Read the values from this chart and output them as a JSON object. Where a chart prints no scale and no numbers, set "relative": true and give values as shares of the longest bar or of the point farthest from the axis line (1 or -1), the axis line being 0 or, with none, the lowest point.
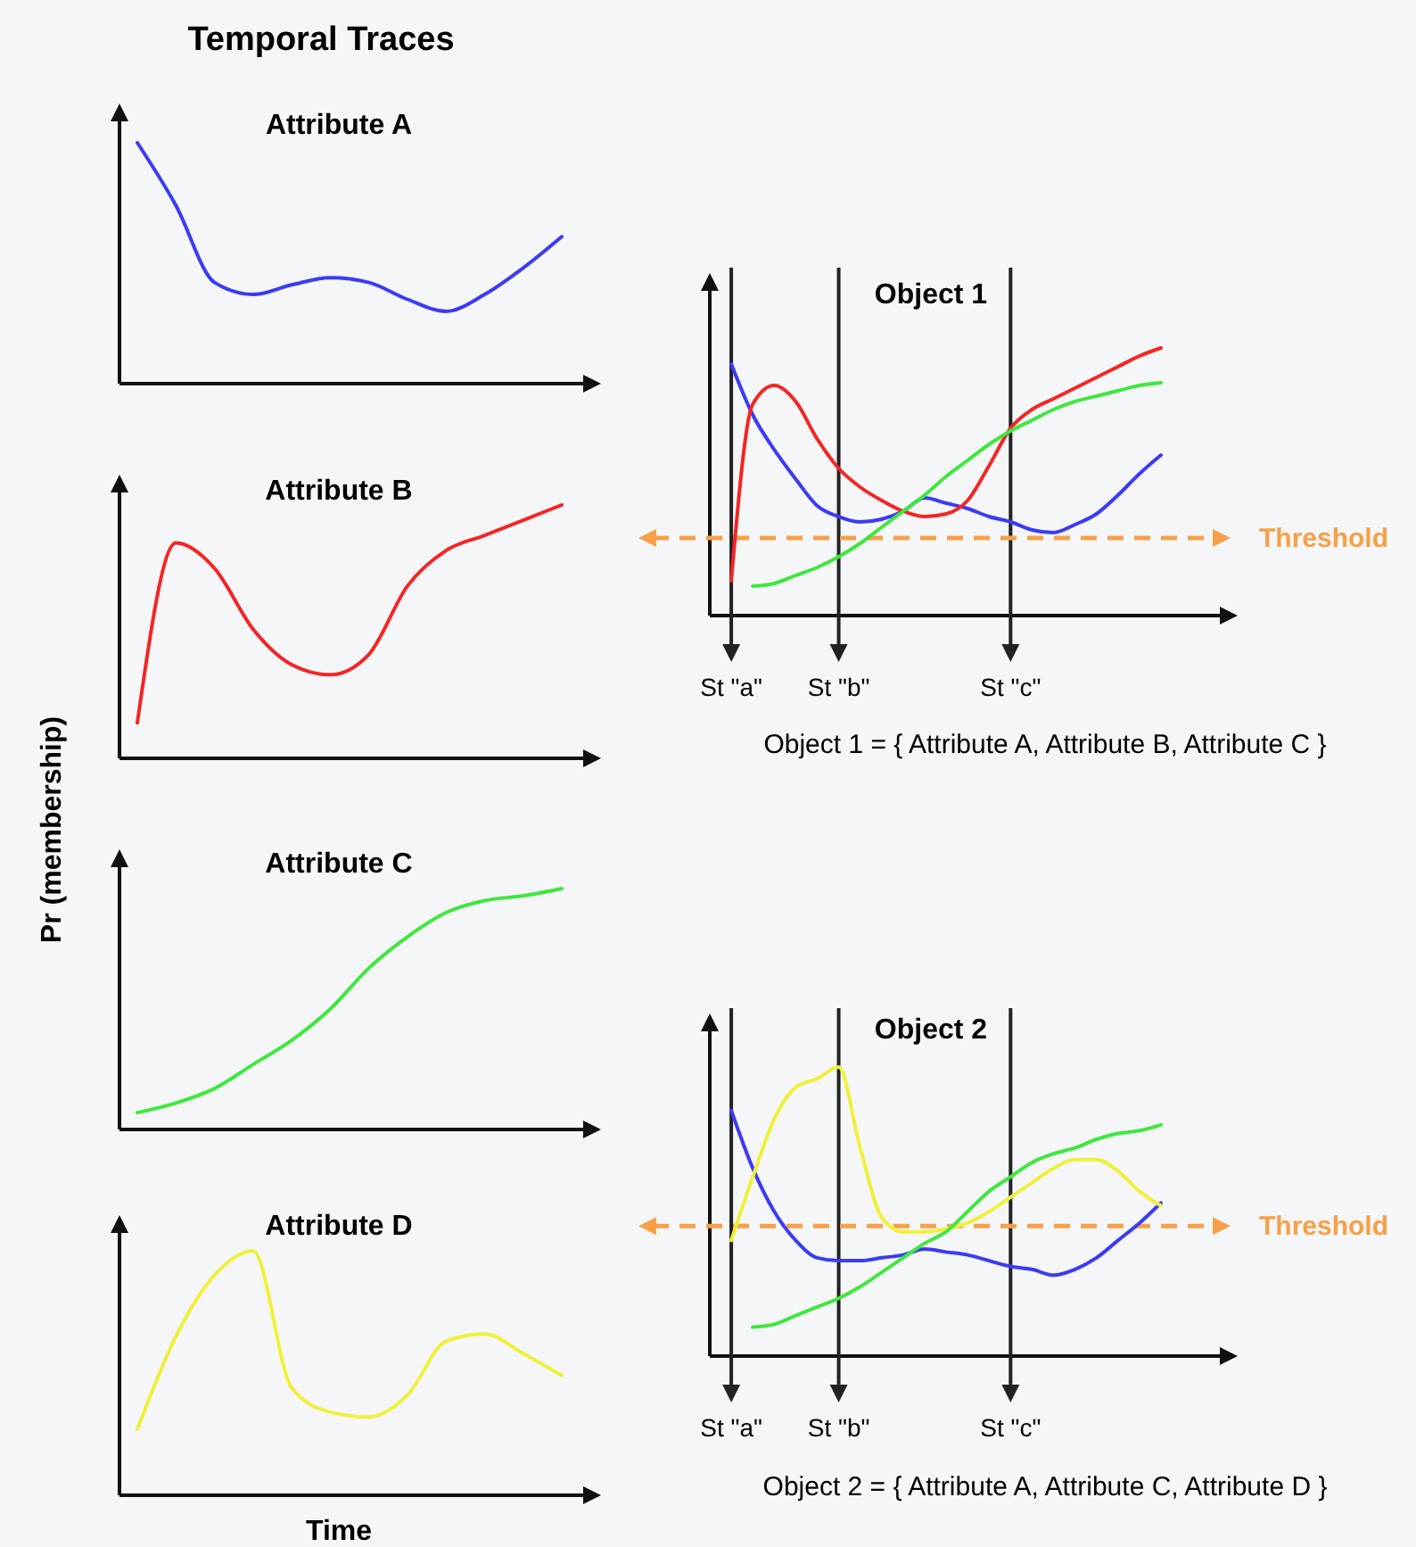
{
  "chart_data": [
    {
      "type": "line",
      "relative": true,
      "title": "Attribute A",
      "annotations": [
        "Temporal Traces"
      ],
      "categories": [
        null,
        null,
        null,
        null,
        null,
        null,
        null,
        null,
        null,
        null,
        null,
        null
      ],
      "series": [
        {
          "color": "#3b3bf5",
          "values": [
            1,
            0.74,
            0.42,
            0.37,
            0.41,
            0.44,
            0.42,
            0.35,
            0.3,
            0.37,
            0.48,
            0.61
          ]
        }
      ]
    },
    {
      "type": "line",
      "relative": true,
      "title": "Attribute B",
      "categories": [
        null,
        null,
        null,
        null,
        null,
        null,
        null,
        null,
        null,
        null,
        null,
        null
      ],
      "series": [
        {
          "color": "#f52525",
          "values": [
            0.14,
            0.85,
            0.75,
            0.51,
            0.37,
            0.33,
            0.41,
            0.68,
            0.82,
            0.88,
            0.94,
            1
          ]
        }
      ]
    },
    {
      "type": "line",
      "relative": true,
      "title": "Attribute C",
      "ylabel": "Pr (membership)",
      "categories": [
        null,
        null,
        null,
        null,
        null,
        null,
        null,
        null,
        null,
        null,
        null,
        null
      ],
      "series": [
        {
          "color": "#3ee83e",
          "values": [
            0.07,
            0.11,
            0.17,
            0.27,
            0.37,
            0.5,
            0.67,
            0.8,
            0.9,
            0.95,
            0.97,
            1
          ]
        }
      ]
    },
    {
      "type": "line",
      "relative": true,
      "title": "Attribute D",
      "xlabel": "Time",
      "categories": [
        null,
        null,
        null,
        null,
        null,
        null,
        null,
        null,
        null,
        null,
        null,
        null
      ],
      "series": [
        {
          "color": "#f0f03a",
          "values": [
            0.27,
            0.65,
            0.9,
            1,
            0.44,
            0.34,
            0.32,
            0.41,
            0.63,
            0.66,
            0.58,
            0.49
          ]
        }
      ]
    },
    {
      "type": "line",
      "relative": true,
      "title": "Object 1",
      "grid": "x",
      "annotations": [
        "Object 1 = { Attribute A, Attribute B, Attribute C }"
      ],
      "categories": [
        null,
        "St \"a\"",
        null,
        null,
        null,
        null,
        "St \"b\"",
        null,
        null,
        null,
        null,
        null,
        null,
        null,
        "St \"c\"",
        null,
        null,
        null,
        null,
        null,
        null,
        null
      ],
      "series": [
        {
          "color": "#3b3bf5",
          "values": [
            null,
            0.94,
            0.75,
            0.62,
            0.51,
            0.41,
            0.37,
            0.35,
            0.36,
            0.39,
            0.44,
            0.42,
            0.4,
            0.37,
            0.35,
            0.32,
            0.31,
            0.34,
            0.38,
            0.45,
            0.53,
            0.6
          ]
        },
        {
          "color": "#f52525",
          "values": [
            null,
            0.13,
            0.79,
            0.86,
            0.8,
            0.66,
            0.55,
            0.48,
            0.43,
            0.39,
            0.37,
            0.38,
            0.43,
            0.56,
            0.7,
            0.77,
            0.81,
            0.85,
            0.89,
            0.93,
            0.97,
            1
          ]
        },
        {
          "color": "#3ee83e",
          "values": [
            null,
            null,
            0.11,
            0.12,
            0.15,
            0.18,
            0.22,
            0.27,
            0.33,
            0.39,
            0.45,
            0.52,
            0.58,
            0.64,
            0.69,
            0.73,
            0.77,
            0.8,
            0.82,
            0.84,
            0.86,
            0.87
          ]
        }
      ],
      "ref_lines": [
        {
          "axis": "y",
          "value": 0.29,
          "label": "Threshold",
          "color": "#f7a048",
          "line_style": "dashed"
        }
      ]
    },
    {
      "type": "line",
      "relative": true,
      "title": "Object 2",
      "grid": "x",
      "annotations": [
        "Object 2 = { Attribute A, Attribute C, Attribute D }"
      ],
      "categories": [
        null,
        "St \"a\"",
        null,
        null,
        null,
        null,
        "St \"b\"",
        null,
        null,
        null,
        null,
        null,
        null,
        null,
        "St \"c\"",
        null,
        null,
        null,
        null,
        null,
        null,
        null
      ],
      "series": [
        {
          "color": "#3b3bf5",
          "values": [
            null,
            0.85,
            0.65,
            0.5,
            0.4,
            0.34,
            0.33,
            0.33,
            0.34,
            0.35,
            0.37,
            0.36,
            0.35,
            0.33,
            0.31,
            0.3,
            0.28,
            0.3,
            0.34,
            0.4,
            0.46,
            0.53
          ]
        },
        {
          "color": "#f0f03a",
          "values": [
            null,
            0.4,
            0.62,
            0.82,
            0.93,
            0.96,
            1,
            0.72,
            0.48,
            0.43,
            0.43,
            0.44,
            0.46,
            0.5,
            0.55,
            0.6,
            0.65,
            0.68,
            0.68,
            0.64,
            0.57,
            0.52
          ]
        },
        {
          "color": "#3ee83e",
          "values": [
            null,
            null,
            0.1,
            0.11,
            0.14,
            0.17,
            0.2,
            0.24,
            0.29,
            0.34,
            0.39,
            0.43,
            0.5,
            0.57,
            0.62,
            0.67,
            0.7,
            0.72,
            0.75,
            0.77,
            0.78,
            0.8
          ]
        }
      ],
      "ref_lines": [
        {
          "axis": "y",
          "value": 0.45,
          "label": "Threshold",
          "color": "#f7a048",
          "line_style": "dashed"
        }
      ]
    }
  ]
}
